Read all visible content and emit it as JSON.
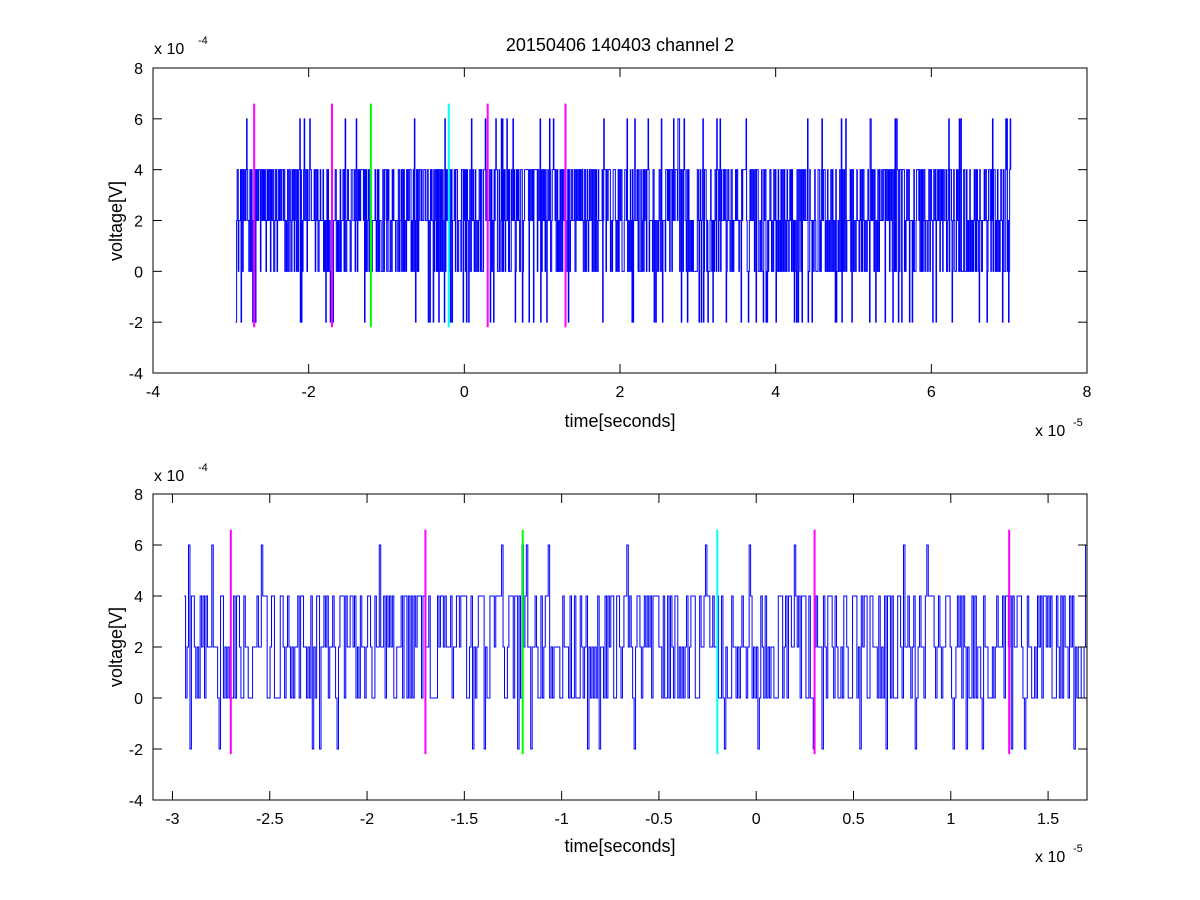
{
  "figure": {
    "title": "20150406 140403 channel 2"
  },
  "colors": {
    "signal": "#0000ff",
    "marker_magenta": "#ff00ff",
    "marker_green": "#00ff00",
    "marker_cyan": "#00ffff",
    "axes": "#000000",
    "background": "#ffffff"
  },
  "chart_data": [
    {
      "type": "line",
      "title": "20150406 140403 channel 2",
      "xlabel": "time[seconds]",
      "ylabel": "voltage[V]",
      "x_multiplier": {
        "base": "x 10",
        "exponent": "-5",
        "value": 1e-05
      },
      "y_multiplier": {
        "base": "x 10",
        "exponent": "-4",
        "value": 0.0001
      },
      "xlim": [
        -4,
        8
      ],
      "ylim": [
        -4,
        8
      ],
      "xticks": [
        -4,
        -2,
        0,
        2,
        4,
        6,
        8
      ],
      "xtick_labels": [
        "-4",
        "-2",
        "0",
        "2",
        "4",
        "6",
        "8"
      ],
      "yticks": [
        -4,
        -2,
        0,
        2,
        4,
        6,
        8
      ],
      "ytick_labels": [
        "-4",
        "-2",
        "0",
        "2",
        "4",
        "6",
        "8"
      ],
      "grid": false,
      "signal": {
        "x_start": -2.94,
        "x_end": 7.02,
        "levels": [
          -2,
          0,
          2,
          4,
          6
        ],
        "baseline": 2,
        "description_values": "quantized noise switching between levels -2, 0, 2, 4 and 6 (x1e-4 V)"
      },
      "markers": [
        {
          "x": -2.7,
          "y_range": [
            -2.2,
            6.6
          ],
          "color": "magenta"
        },
        {
          "x": -1.7,
          "y_range": [
            -2.2,
            6.6
          ],
          "color": "magenta"
        },
        {
          "x": -1.2,
          "y_range": [
            -2.2,
            6.6
          ],
          "color": "green"
        },
        {
          "x": -0.2,
          "y_range": [
            -2.2,
            6.6
          ],
          "color": "cyan"
        },
        {
          "x": 0.3,
          "y_range": [
            -2.2,
            6.6
          ],
          "color": "magenta"
        },
        {
          "x": 1.3,
          "y_range": [
            -2.2,
            6.6
          ],
          "color": "magenta"
        }
      ]
    },
    {
      "type": "line",
      "title": "",
      "xlabel": "time[seconds]",
      "ylabel": "voltage[V]",
      "x_multiplier": {
        "base": "x 10",
        "exponent": "-5",
        "value": 1e-05
      },
      "y_multiplier": {
        "base": "x 10",
        "exponent": "-4",
        "value": 0.0001
      },
      "xlim": [
        -3.1,
        1.7
      ],
      "ylim": [
        -4,
        8
      ],
      "xticks": [
        -3,
        -2.5,
        -2,
        -1.5,
        -1,
        -0.5,
        0,
        0.5,
        1,
        1.5
      ],
      "xtick_labels": [
        "-3",
        "-2.5",
        "-2",
        "-1.5",
        "-1",
        "-0.5",
        "0",
        "0.5",
        "1",
        "1.5"
      ],
      "yticks": [
        -4,
        -2,
        0,
        2,
        4,
        6,
        8
      ],
      "ytick_labels": [
        "-4",
        "-2",
        "0",
        "2",
        "4",
        "6",
        "8"
      ],
      "grid": false,
      "signal": {
        "x_start": -2.94,
        "x_end": 1.7,
        "levels": [
          -2,
          0,
          2,
          4,
          6
        ],
        "baseline": 2,
        "description_values": "zoomed view of the same quantized signal (x1e-4 V)"
      },
      "markers": [
        {
          "x": -2.7,
          "y_range": [
            -2.2,
            6.6
          ],
          "color": "magenta"
        },
        {
          "x": -1.7,
          "y_range": [
            -2.2,
            6.6
          ],
          "color": "magenta"
        },
        {
          "x": -1.2,
          "y_range": [
            -2.2,
            6.6
          ],
          "color": "green"
        },
        {
          "x": -0.2,
          "y_range": [
            -2.2,
            6.6
          ],
          "color": "cyan"
        },
        {
          "x": 0.3,
          "y_range": [
            -2.2,
            6.6
          ],
          "color": "magenta"
        },
        {
          "x": 1.3,
          "y_range": [
            -2.2,
            6.6
          ],
          "color": "magenta"
        }
      ]
    }
  ]
}
